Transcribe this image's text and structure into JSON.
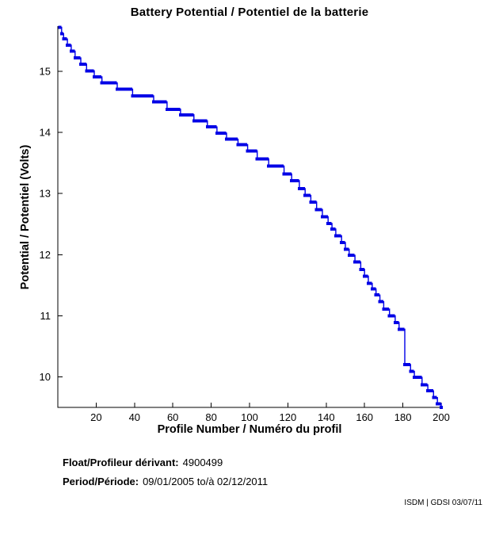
{
  "chart_data": {
    "type": "line",
    "title": "Battery Potential / Potentiel de la batterie",
    "xlabel": "Profile Number / Numéro du profil",
    "ylabel": "Potential / Potentiel (Volts)",
    "xlim": [
      0,
      200
    ],
    "ylim": [
      9.5,
      15.74
    ],
    "x_ticks": [
      20,
      40,
      60,
      80,
      100,
      120,
      140,
      160,
      180,
      200
    ],
    "y_ticks": [
      10,
      11,
      12,
      13,
      14,
      15
    ],
    "grid": false,
    "legend": false,
    "axis_color": "#000000",
    "line_color": "#0000E6",
    "marker": "filled-square",
    "series": [
      {
        "name": "Battery potential (Volts) vs profile number",
        "step_points": [
          [
            1,
            15.72
          ],
          [
            2,
            15.62
          ],
          [
            3,
            15.53
          ],
          [
            5,
            15.43
          ],
          [
            7,
            15.33
          ],
          [
            9,
            15.22
          ],
          [
            12,
            15.12
          ],
          [
            15,
            15.01
          ],
          [
            19,
            14.91
          ],
          [
            23,
            14.81
          ],
          [
            31,
            14.71
          ],
          [
            39,
            14.6
          ],
          [
            50,
            14.5
          ],
          [
            57,
            14.38
          ],
          [
            64,
            14.29
          ],
          [
            71,
            14.19
          ],
          [
            78,
            14.09
          ],
          [
            83,
            13.99
          ],
          [
            88,
            13.89
          ],
          [
            94,
            13.8
          ],
          [
            99,
            13.7
          ],
          [
            104,
            13.57
          ],
          [
            110,
            13.45
          ],
          [
            118,
            13.32
          ],
          [
            122,
            13.21
          ],
          [
            126,
            13.08
          ],
          [
            129,
            12.97
          ],
          [
            132,
            12.86
          ],
          [
            135,
            12.74
          ],
          [
            138,
            12.62
          ],
          [
            141,
            12.51
          ],
          [
            143,
            12.42
          ],
          [
            145,
            12.31
          ],
          [
            148,
            12.2
          ],
          [
            150,
            12.09
          ],
          [
            152,
            11.99
          ],
          [
            155,
            11.88
          ],
          [
            158,
            11.76
          ],
          [
            160,
            11.65
          ],
          [
            162,
            11.53
          ],
          [
            164,
            11.44
          ],
          [
            166,
            11.34
          ],
          [
            168,
            11.23
          ],
          [
            170,
            11.11
          ],
          [
            173,
            11.0
          ],
          [
            176,
            10.89
          ],
          [
            178,
            10.78
          ],
          [
            181,
            10.2
          ],
          [
            184,
            10.09
          ],
          [
            186,
            9.99
          ],
          [
            190,
            9.87
          ],
          [
            193,
            9.77
          ],
          [
            196,
            9.66
          ],
          [
            198,
            9.56
          ],
          [
            200,
            9.5
          ]
        ]
      }
    ]
  },
  "footer": {
    "float_label": "Float/Profileur dérivant:",
    "float_value": "4900499",
    "period_label": "Period/Période:",
    "period_value": "09/01/2005  to/à  02/12/2011",
    "credit": "ISDM | GDSI 03/07/11"
  }
}
